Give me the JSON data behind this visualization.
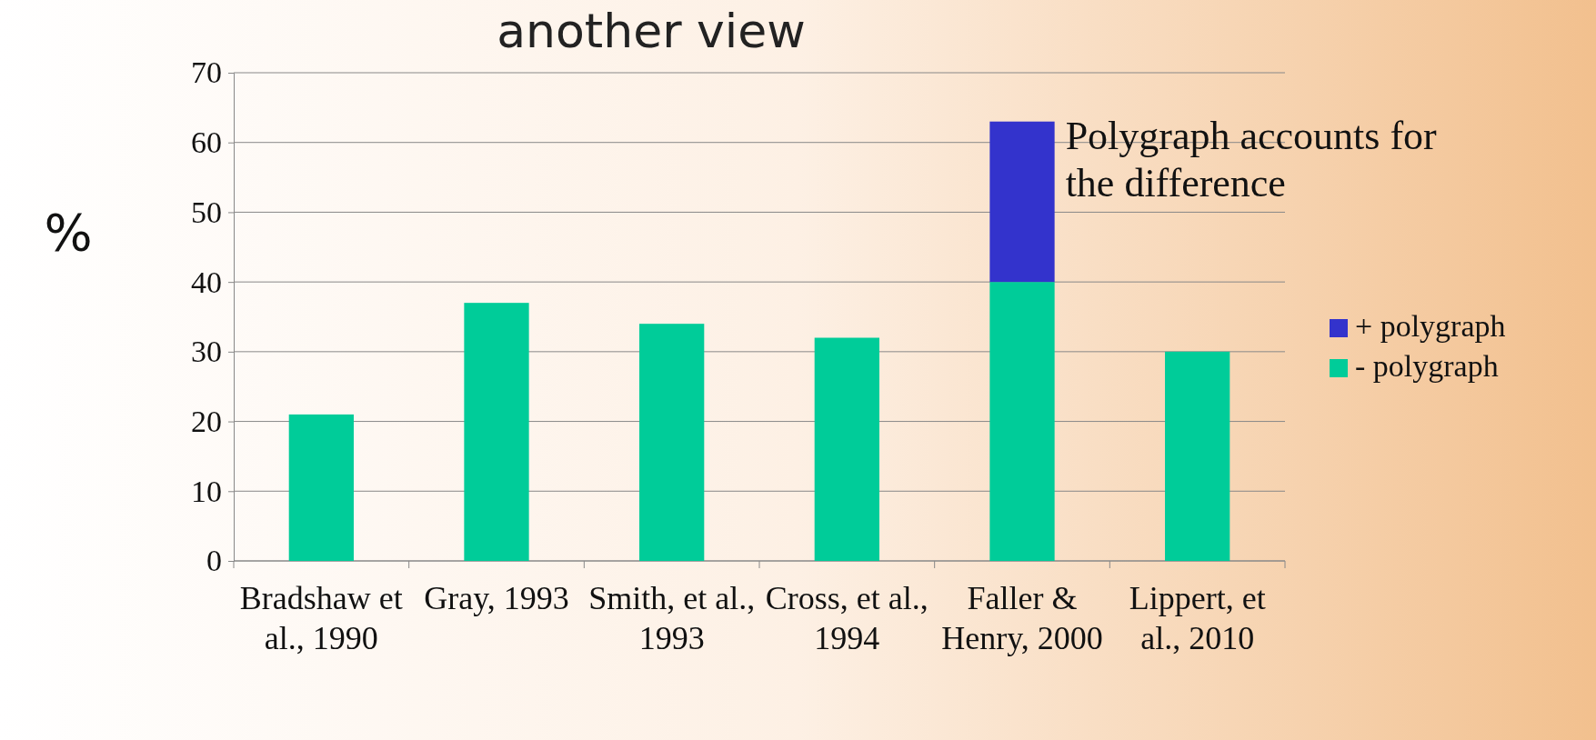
{
  "chart_data": {
    "type": "bar",
    "title": "another view",
    "ylabel": "%",
    "categories": [
      "Bradshaw et al., 1990",
      "Gray, 1993",
      "Smith, et al., 1993",
      "Cross, et al., 1994",
      "Faller & Henry, 2000",
      "Lippert, et al., 2010"
    ],
    "series": [
      {
        "name": "- polygraph",
        "color": "#00cc99",
        "values": [
          21,
          37,
          34,
          32,
          40,
          30
        ]
      },
      {
        "name": "+ polygraph",
        "color": "#3333cc",
        "values": [
          null,
          null,
          null,
          null,
          23,
          null
        ]
      }
    ],
    "stacked": true,
    "ylim": [
      0,
      70
    ],
    "yticks": [
      0,
      10,
      20,
      30,
      40,
      50,
      60,
      70
    ],
    "grid": "y",
    "legend": "right",
    "annotations": [
      {
        "text": "Polygraph accounts for the difference",
        "x": "Faller & Henry, 2000",
        "y": 63
      }
    ]
  }
}
